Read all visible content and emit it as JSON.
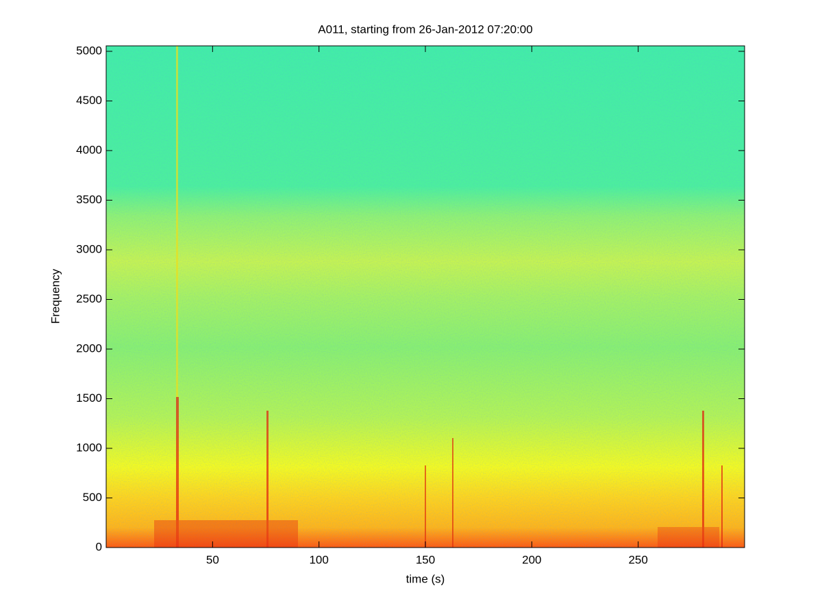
{
  "chart_data": {
    "type": "spectrogram",
    "title": "A011, starting from 26-Jan-2012 07:20:00",
    "x_label": "time (s)",
    "y_label": "Frequency",
    "xlim": [
      0,
      300
    ],
    "xticks": [
      50,
      100,
      150,
      200,
      250
    ],
    "ylim": [
      0,
      5055
    ],
    "yticks": [
      0,
      500,
      1000,
      1500,
      2000,
      2500,
      3000,
      3500,
      4000,
      4500,
      5000
    ]
  }
}
